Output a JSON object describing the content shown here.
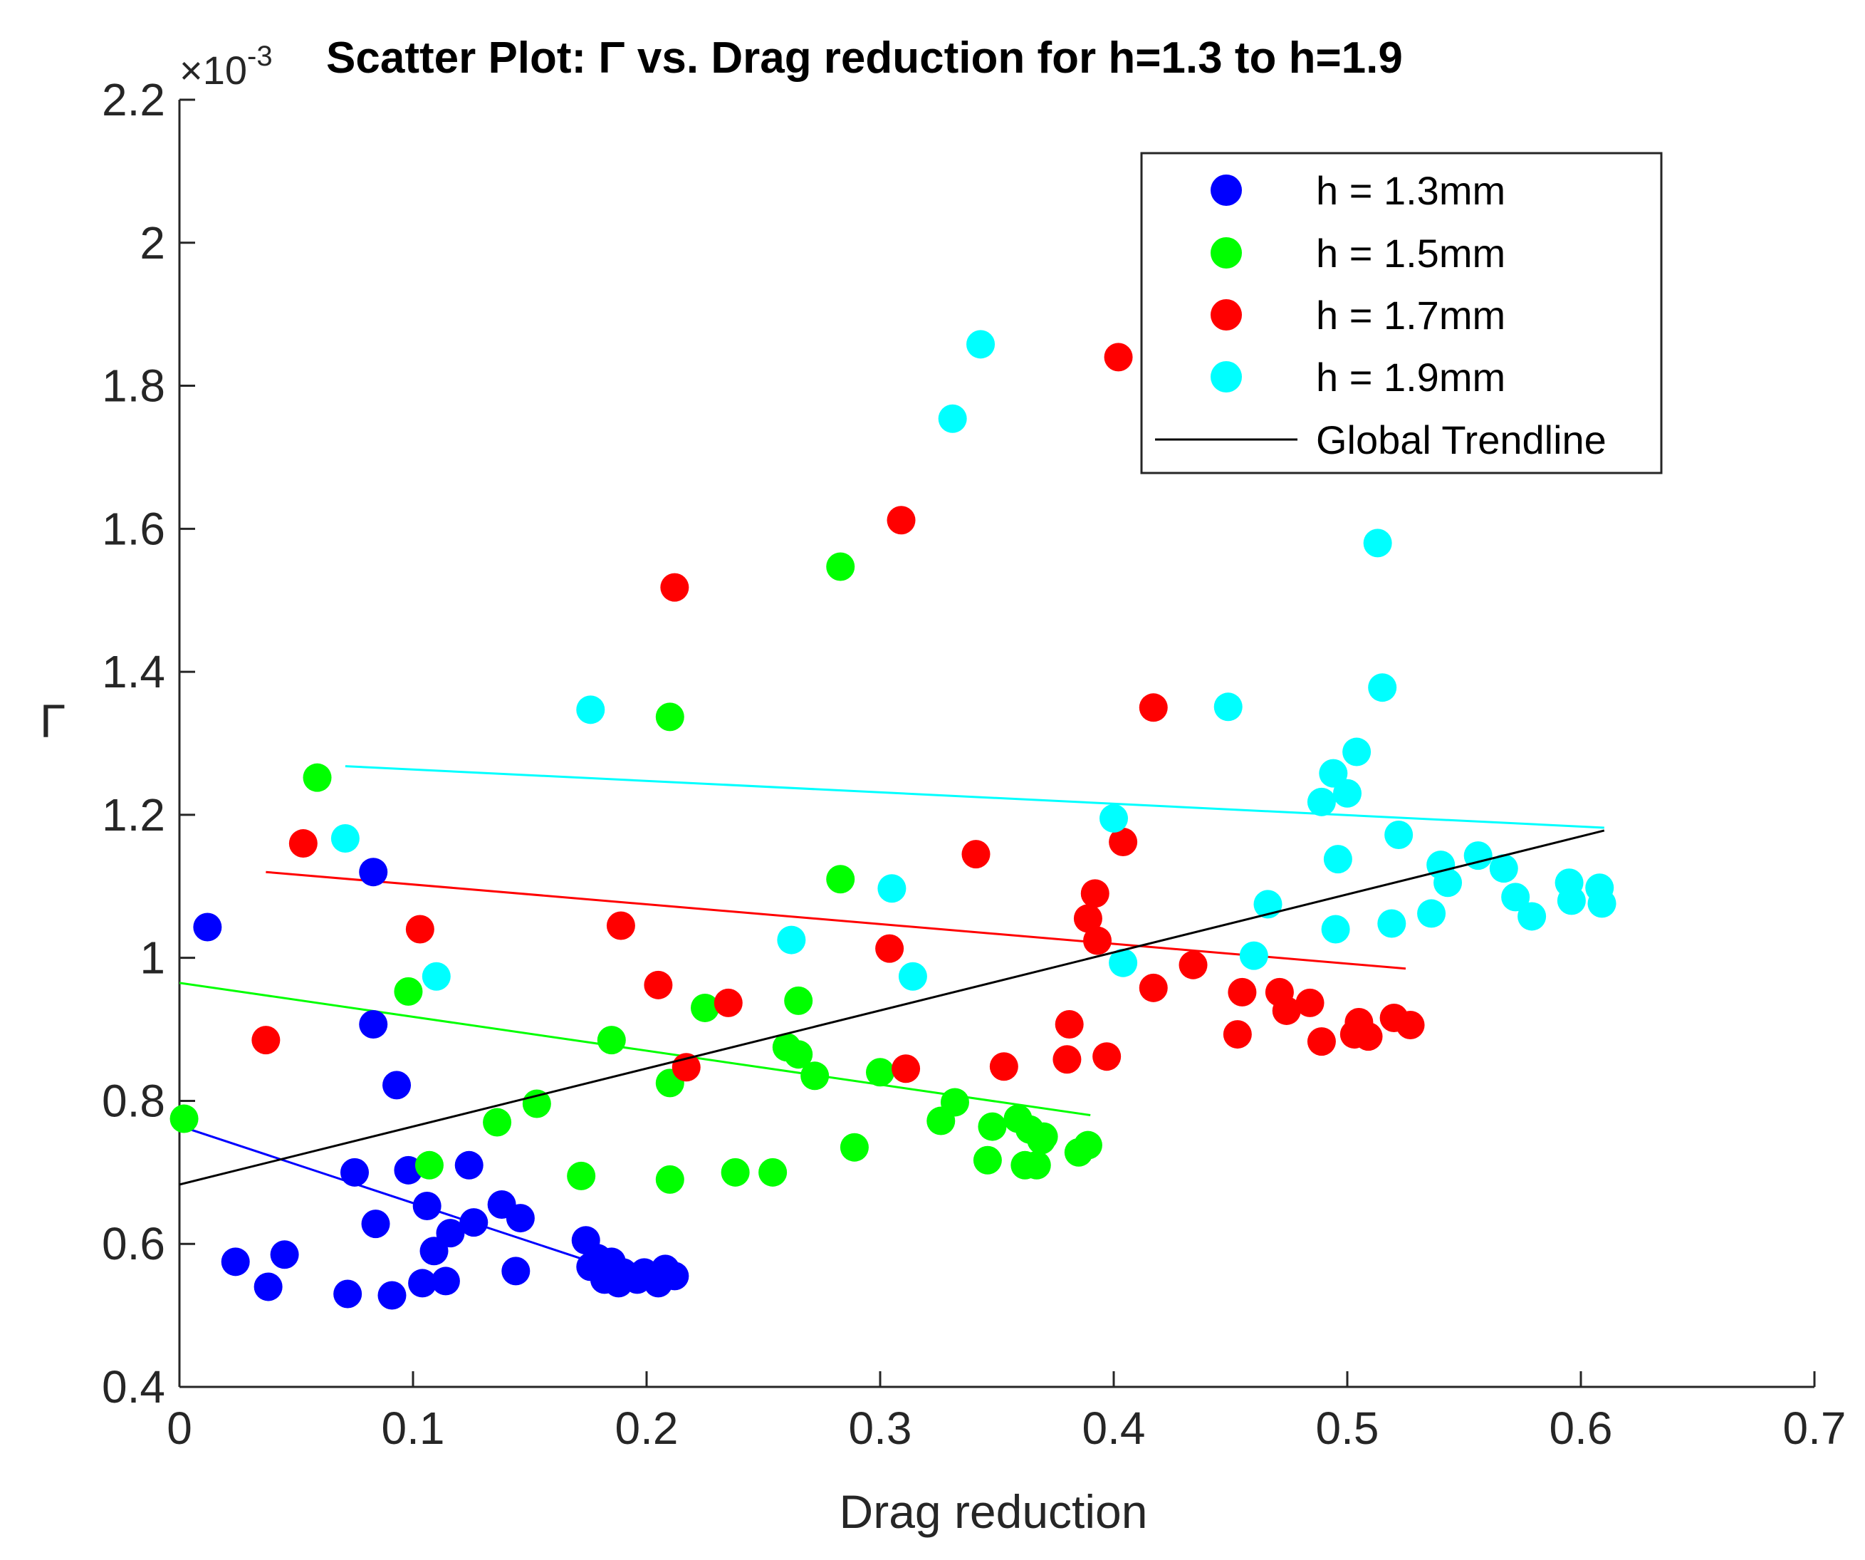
{
  "chart_data": {
    "type": "scatter",
    "title": "Scatter Plot: Γ vs. Drag reduction for h=1.3 to h=1.9",
    "scale_prefix": "×10",
    "scale_exponent": "-3",
    "xlabel": "Drag reduction",
    "ylabel": "Γ",
    "xlim": [
      0,
      0.7
    ],
    "ylim": [
      0.4,
      2.2
    ],
    "x_ticks": [
      0,
      0.1,
      0.2,
      0.3,
      0.4,
      0.5,
      0.6,
      0.7
    ],
    "x_tick_labels": [
      "0",
      "0.1",
      "0.2",
      "0.3",
      "0.4",
      "0.5",
      "0.6",
      "0.7"
    ],
    "y_ticks": [
      0.4,
      0.6,
      0.8,
      1.0,
      1.2,
      1.4,
      1.6,
      1.8,
      2.0,
      2.2
    ],
    "y_tick_labels": [
      "0.4",
      "0.6",
      "0.8",
      "1",
      "1.2",
      "1.4",
      "1.6",
      "1.8",
      "2",
      "2.2"
    ],
    "legend_position": "top-right",
    "series": [
      {
        "name": "h = 1.3mm",
        "color": "#0000ff",
        "points": [
          [
            0.012,
            1.043
          ],
          [
            0.083,
            1.12
          ],
          [
            0.083,
            0.907
          ],
          [
            0.093,
            0.822
          ],
          [
            0.024,
            0.575
          ],
          [
            0.038,
            0.54
          ],
          [
            0.045,
            0.585
          ],
          [
            0.072,
            0.53
          ],
          [
            0.075,
            0.7
          ],
          [
            0.084,
            0.628
          ],
          [
            0.091,
            0.528
          ],
          [
            0.098,
            0.703
          ],
          [
            0.104,
            0.545
          ],
          [
            0.106,
            0.653
          ],
          [
            0.109,
            0.59
          ],
          [
            0.114,
            0.548
          ],
          [
            0.116,
            0.615
          ],
          [
            0.124,
            0.71
          ],
          [
            0.126,
            0.63
          ],
          [
            0.138,
            0.655
          ],
          [
            0.144,
            0.562
          ],
          [
            0.146,
            0.636
          ],
          [
            0.174,
            0.605
          ],
          [
            0.176,
            0.568
          ],
          [
            0.179,
            0.58
          ],
          [
            0.182,
            0.55
          ],
          [
            0.185,
            0.575
          ],
          [
            0.188,
            0.545
          ],
          [
            0.19,
            0.56
          ],
          [
            0.196,
            0.55
          ],
          [
            0.199,
            0.56
          ],
          [
            0.205,
            0.545
          ],
          [
            0.208,
            0.565
          ],
          [
            0.212,
            0.555
          ]
        ],
        "trend": [
          [
            0.0,
            0.765
          ],
          [
            0.19,
            0.56
          ]
        ]
      },
      {
        "name": "h = 1.5mm",
        "color": "#00ff00",
        "points": [
          [
            0.002,
            0.775
          ],
          [
            0.059,
            1.252
          ],
          [
            0.098,
            0.953
          ],
          [
            0.107,
            0.71
          ],
          [
            0.136,
            0.77
          ],
          [
            0.153,
            0.796
          ],
          [
            0.172,
            0.695
          ],
          [
            0.185,
            0.885
          ],
          [
            0.21,
            1.337
          ],
          [
            0.21,
            0.825
          ],
          [
            0.21,
            0.69
          ],
          [
            0.225,
            0.93
          ],
          [
            0.238,
            0.7
          ],
          [
            0.254,
            0.7
          ],
          [
            0.26,
            0.875
          ],
          [
            0.265,
            0.865
          ],
          [
            0.265,
            0.94
          ],
          [
            0.272,
            0.835
          ],
          [
            0.283,
            1.547
          ],
          [
            0.283,
            1.11
          ],
          [
            0.289,
            0.735
          ],
          [
            0.3,
            0.84
          ],
          [
            0.326,
            0.772
          ],
          [
            0.332,
            0.798
          ],
          [
            0.346,
            0.717
          ],
          [
            0.348,
            0.764
          ],
          [
            0.359,
            0.775
          ],
          [
            0.362,
            0.71
          ],
          [
            0.364,
            0.76
          ],
          [
            0.367,
            0.71
          ],
          [
            0.369,
            0.745
          ],
          [
            0.37,
            0.75
          ],
          [
            0.385,
            0.728
          ],
          [
            0.389,
            0.738
          ]
        ],
        "trend": [
          [
            0.0,
            0.965
          ],
          [
            0.39,
            0.78
          ]
        ]
      },
      {
        "name": "h = 1.7mm",
        "color": "#ff0000",
        "points": [
          [
            0.037,
            0.885
          ],
          [
            0.053,
            1.16
          ],
          [
            0.103,
            1.04
          ],
          [
            0.189,
            1.045
          ],
          [
            0.205,
            0.962
          ],
          [
            0.212,
            1.518
          ],
          [
            0.217,
            0.847
          ],
          [
            0.235,
            0.937
          ],
          [
            0.304,
            1.013
          ],
          [
            0.309,
            1.612
          ],
          [
            0.311,
            0.845
          ],
          [
            0.341,
            1.145
          ],
          [
            0.353,
            0.848
          ],
          [
            0.38,
            0.858
          ],
          [
            0.381,
            0.907
          ],
          [
            0.389,
            1.055
          ],
          [
            0.392,
            1.09
          ],
          [
            0.393,
            1.024
          ],
          [
            0.397,
            0.862
          ],
          [
            0.402,
            1.84
          ],
          [
            0.404,
            1.162
          ],
          [
            0.417,
            0.958
          ],
          [
            0.417,
            1.35
          ],
          [
            0.434,
            0.99
          ],
          [
            0.453,
            0.893
          ],
          [
            0.455,
            0.952
          ],
          [
            0.471,
            0.952
          ],
          [
            0.474,
            0.926
          ],
          [
            0.484,
            0.937
          ],
          [
            0.489,
            0.883
          ],
          [
            0.503,
            0.893
          ],
          [
            0.505,
            0.91
          ],
          [
            0.509,
            0.89
          ],
          [
            0.52,
            0.916
          ],
          [
            0.527,
            0.906
          ]
        ],
        "trend": [
          [
            0.037,
            1.12
          ],
          [
            0.525,
            0.985
          ]
        ]
      },
      {
        "name": "h = 1.9mm",
        "color": "#00ffff",
        "points": [
          [
            0.071,
            1.167
          ],
          [
            0.11,
            0.974
          ],
          [
            0.176,
            1.347
          ],
          [
            0.262,
            1.025
          ],
          [
            0.305,
            1.097
          ],
          [
            0.314,
            0.974
          ],
          [
            0.331,
            1.754
          ],
          [
            0.343,
            1.858
          ],
          [
            0.4,
            1.195
          ],
          [
            0.404,
            0.993
          ],
          [
            0.449,
            1.351
          ],
          [
            0.46,
            1.003
          ],
          [
            0.466,
            1.075
          ],
          [
            0.489,
            1.218
          ],
          [
            0.494,
            1.258
          ],
          [
            0.495,
            1.04
          ],
          [
            0.496,
            1.138
          ],
          [
            0.5,
            1.23
          ],
          [
            0.504,
            1.288
          ],
          [
            0.513,
            1.58
          ],
          [
            0.515,
            1.378
          ],
          [
            0.519,
            1.048
          ],
          [
            0.522,
            1.172
          ],
          [
            0.536,
            1.062
          ],
          [
            0.54,
            1.13
          ],
          [
            0.543,
            1.105
          ],
          [
            0.556,
            1.143
          ],
          [
            0.567,
            1.125
          ],
          [
            0.572,
            1.085
          ],
          [
            0.579,
            1.058
          ],
          [
            0.595,
            1.105
          ],
          [
            0.596,
            1.08
          ],
          [
            0.608,
            1.098
          ],
          [
            0.609,
            1.076
          ]
        ],
        "trend": [
          [
            0.071,
            1.268
          ],
          [
            0.61,
            1.182
          ]
        ]
      }
    ],
    "global_trend": {
      "name": "Global Trendline",
      "color": "#000000",
      "line": [
        [
          0.0,
          0.683
        ],
        [
          0.61,
          1.178
        ]
      ]
    }
  }
}
